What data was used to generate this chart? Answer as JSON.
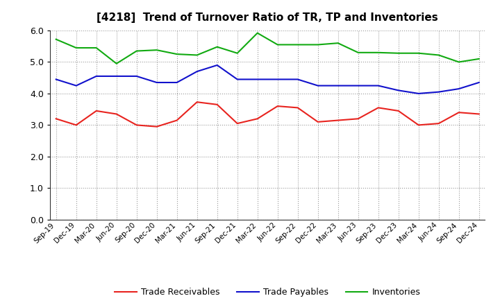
{
  "title": "[4218]  Trend of Turnover Ratio of TR, TP and Inventories",
  "labels": [
    "Sep-19",
    "Dec-19",
    "Mar-20",
    "Jun-20",
    "Sep-20",
    "Dec-20",
    "Mar-21",
    "Jun-21",
    "Sep-21",
    "Dec-21",
    "Mar-22",
    "Jun-22",
    "Sep-22",
    "Dec-22",
    "Mar-23",
    "Jun-23",
    "Sep-23",
    "Dec-23",
    "Mar-24",
    "Jun-24",
    "Sep-24",
    "Dec-24"
  ],
  "trade_receivables": [
    3.2,
    3.0,
    3.45,
    3.35,
    3.0,
    2.95,
    3.15,
    3.73,
    3.65,
    3.05,
    3.2,
    3.6,
    3.55,
    3.1,
    3.15,
    3.2,
    3.55,
    3.45,
    3.0,
    3.05,
    3.4,
    3.35
  ],
  "trade_payables": [
    4.45,
    4.25,
    4.55,
    4.55,
    4.55,
    4.35,
    4.35,
    4.7,
    4.9,
    4.45,
    4.45,
    4.45,
    4.45,
    4.25,
    4.25,
    4.25,
    4.25,
    4.1,
    4.0,
    4.05,
    4.15,
    4.35
  ],
  "inventories": [
    5.72,
    5.45,
    5.45,
    4.95,
    5.35,
    5.38,
    5.25,
    5.22,
    5.48,
    5.28,
    5.92,
    5.55,
    5.55,
    5.55,
    5.6,
    5.3,
    5.3,
    5.28,
    5.28,
    5.22,
    5.0,
    5.1
  ],
  "tr_color": "#e8231e",
  "tp_color": "#1111cc",
  "inv_color": "#11aa11",
  "ylim": [
    0.0,
    6.0
  ],
  "yticks": [
    0.0,
    1.0,
    2.0,
    3.0,
    4.0,
    5.0,
    6.0
  ],
  "legend_labels": [
    "Trade Receivables",
    "Trade Payables",
    "Inventories"
  ],
  "background_color": "#ffffff",
  "plot_bg_color": "#ffffff"
}
